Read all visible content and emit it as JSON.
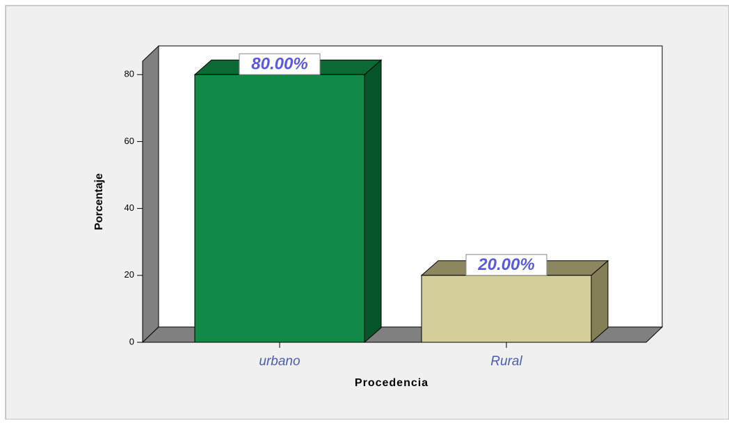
{
  "chart_data": {
    "type": "bar3d",
    "x_label": "Procedencia",
    "y_label": "Porcentaje",
    "categories": [
      "urbano",
      "Rural"
    ],
    "values": [
      80,
      20
    ],
    "value_labels": [
      "80.00%",
      "20.00%"
    ],
    "colors": [
      {
        "front": "#118a47",
        "top": "#0b6a33",
        "side": "#06552a"
      },
      {
        "front": "#d4cf9a",
        "top": "#8c8760",
        "side": "#857f58"
      }
    ],
    "ylim": [
      0,
      84
    ],
    "yticks": [
      0,
      20,
      40,
      60,
      80
    ]
  }
}
